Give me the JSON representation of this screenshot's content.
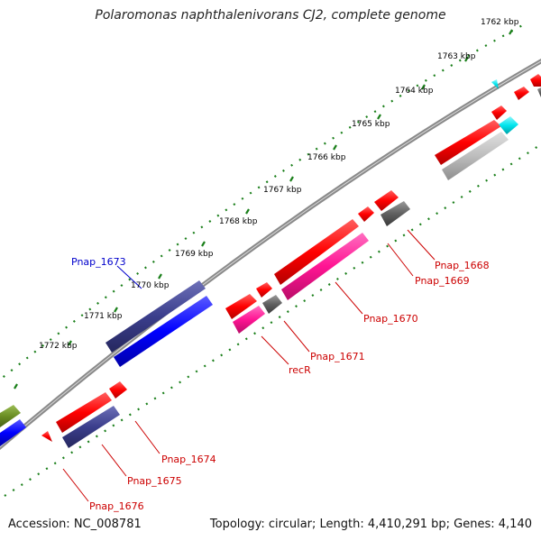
{
  "title": "Polaromonas naphthalenivorans CJ2, complete genome",
  "footer": {
    "accession": "Accession: NC_008781",
    "summary": "Topology: circular; Length: 4,410,291 bp; Genes: 4,140"
  },
  "ticks": [
    "1762 kbp",
    "1763 kbp",
    "1764 kbp",
    "1765 kbp",
    "1766 kbp",
    "1767 kbp",
    "1768 kbp",
    "1769 kbp",
    "1770 kbp",
    "1771 kbp",
    "1772 kbp"
  ],
  "gene_labels": [
    {
      "id": "Pnap_1673",
      "text": "Pnap_1673",
      "color": "#0000cc"
    },
    {
      "id": "Pnap_1668",
      "text": "Pnap_1668",
      "color": "#cc0000"
    },
    {
      "id": "Pnap_1669",
      "text": "Pnap_1669",
      "color": "#cc0000"
    },
    {
      "id": "Pnap_1670",
      "text": "Pnap_1670",
      "color": "#cc0000"
    },
    {
      "id": "Pnap_1671",
      "text": "Pnap_1671",
      "color": "#cc0000"
    },
    {
      "id": "recR",
      "text": "recR",
      "color": "#cc0000"
    },
    {
      "id": "Pnap_1674",
      "text": "Pnap_1674",
      "color": "#cc0000"
    },
    {
      "id": "Pnap_1675",
      "text": "Pnap_1675",
      "color": "#cc0000"
    },
    {
      "id": "Pnap_1676",
      "text": "Pnap_1676",
      "color": "#cc0000"
    }
  ],
  "colors": {
    "cds_forward": "#ff0000",
    "cds_reverse": "#ff0000",
    "trna": "#ff1493",
    "other": "#606060",
    "blue": "#0000ff",
    "navy": "#3b3e8c",
    "cyan": "#00e5ee",
    "olive": "#6b8e23",
    "backbone": "#7a7a7a",
    "tick_green": "#1a7f1a"
  }
}
